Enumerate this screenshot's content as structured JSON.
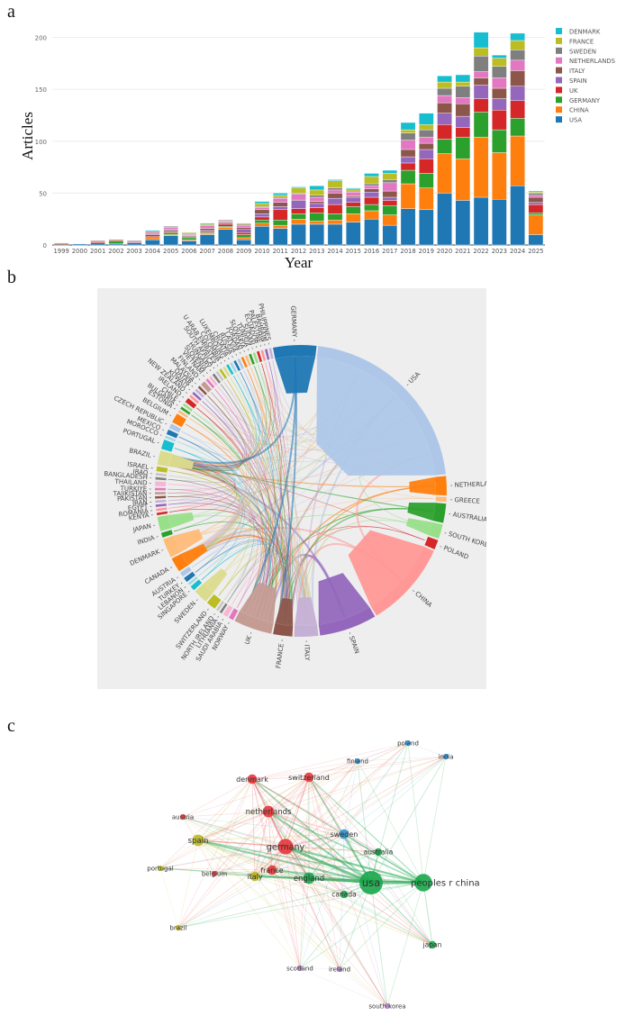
{
  "panels": {
    "a": {
      "letter": "a"
    },
    "b": {
      "letter": "b"
    },
    "c": {
      "letter": "c"
    }
  },
  "chart_data": [
    {
      "type": "bar",
      "stacked": true,
      "panel": "a",
      "title": "",
      "xlabel": "Year",
      "ylabel": "Articles",
      "ylim": [
        0,
        210
      ],
      "yticks": [
        0,
        50,
        100,
        150,
        200
      ],
      "grid": true,
      "legend_position": "top-right",
      "categories": [
        "1999",
        "2000",
        "2001",
        "2002",
        "2003",
        "2004",
        "2005",
        "2006",
        "2007",
        "2008",
        "2009",
        "2010",
        "2011",
        "2012",
        "2013",
        "2014",
        "2015",
        "2016",
        "2017",
        "2018",
        "2019",
        "2020",
        "2021",
        "2022",
        "2023",
        "2024",
        "2025"
      ],
      "series": [
        {
          "name": "USA",
          "color": "#1f77b4",
          "values": [
            0,
            1,
            2,
            1,
            2,
            5,
            9,
            4,
            10,
            15,
            5,
            18,
            16,
            20,
            20,
            20,
            22,
            25,
            19,
            35,
            34,
            50,
            43,
            46,
            44,
            57,
            10
          ]
        },
        {
          "name": "CHINA",
          "color": "#ff7f0e",
          "values": [
            0,
            0,
            0,
            0,
            0,
            2,
            1,
            1,
            1,
            2,
            2,
            3,
            3,
            5,
            3,
            4,
            8,
            8,
            10,
            24,
            21,
            38,
            40,
            58,
            45,
            48,
            19
          ]
        },
        {
          "name": "GERMANY",
          "color": "#2ca02c",
          "values": [
            0,
            0,
            0,
            3,
            0,
            1,
            2,
            2,
            1,
            1,
            3,
            3,
            5,
            5,
            8,
            6,
            7,
            6,
            9,
            13,
            14,
            14,
            21,
            24,
            22,
            17,
            2
          ]
        },
        {
          "name": "UK",
          "color": "#d62728",
          "values": [
            0,
            0,
            1,
            1,
            0,
            2,
            1,
            0,
            1,
            2,
            2,
            3,
            10,
            5,
            5,
            9,
            4,
            7,
            5,
            7,
            14,
            14,
            9,
            13,
            19,
            17,
            8
          ]
        },
        {
          "name": "SPAIN",
          "color": "#9467bd",
          "values": [
            0,
            0,
            0,
            0,
            1,
            1,
            1,
            1,
            1,
            1,
            3,
            3,
            3,
            8,
            4,
            6,
            5,
            5,
            3,
            6,
            9,
            11,
            11,
            13,
            11,
            14,
            2
          ]
        },
        {
          "name": "ITALY",
          "color": "#8c564b",
          "values": [
            1,
            0,
            1,
            0,
            1,
            1,
            1,
            1,
            2,
            1,
            2,
            4,
            4,
            1,
            2,
            5,
            1,
            3,
            6,
            7,
            6,
            10,
            12,
            7,
            10,
            15,
            5
          ]
        },
        {
          "name": "NETHERLANDS",
          "color": "#e377c2",
          "values": [
            0,
            0,
            0,
            0,
            0,
            1,
            2,
            1,
            3,
            1,
            2,
            2,
            4,
            5,
            4,
            3,
            4,
            3,
            8,
            9,
            6,
            7,
            6,
            6,
            10,
            10,
            2
          ]
        },
        {
          "name": "SWEDEN",
          "color": "#7f7f7f",
          "values": [
            1,
            0,
            0,
            0,
            0,
            0,
            1,
            1,
            0,
            1,
            1,
            1,
            1,
            1,
            2,
            2,
            1,
            2,
            3,
            7,
            7,
            7,
            11,
            15,
            11,
            10,
            2
          ]
        },
        {
          "name": "FRANCE",
          "color": "#bcbd22",
          "values": [
            0,
            0,
            0,
            0,
            0,
            0,
            0,
            1,
            1,
            0,
            1,
            3,
            2,
            5,
            5,
            7,
            2,
            7,
            6,
            3,
            5,
            6,
            4,
            8,
            8,
            9,
            1
          ]
        },
        {
          "name": "DENMARK",
          "color": "#17becf",
          "values": [
            0,
            0,
            0,
            0,
            0,
            1,
            0,
            0,
            1,
            0,
            0,
            2,
            2,
            1,
            4,
            1,
            1,
            3,
            3,
            7,
            11,
            6,
            7,
            15,
            3,
            7,
            1
          ]
        }
      ]
    },
    {
      "type": "chord",
      "panel": "b",
      "groups": [
        {
          "name": "USA",
          "color": "#aec7e8",
          "size": 40
        },
        {
          "name": "NETHERLANDS",
          "color": "#ff7f0e",
          "size": 4
        },
        {
          "name": "GREECE",
          "color": "#ffbb78",
          "size": 1
        },
        {
          "name": "AUSTRALIA",
          "color": "#2ca02c",
          "size": 4
        },
        {
          "name": "SOUTH KOREA",
          "color": "#98df8a",
          "size": 3
        },
        {
          "name": "POLAND",
          "color": "#d62728",
          "size": 2
        },
        {
          "name": "CHINA",
          "color": "#ff9896",
          "size": 18
        },
        {
          "name": "SPAIN",
          "color": "#9467bd",
          "size": 12
        },
        {
          "name": "ITALY",
          "color": "#c5b0d5",
          "size": 5
        },
        {
          "name": "FRANCE",
          "color": "#8c564b",
          "size": 4
        },
        {
          "name": "UK",
          "color": "#c49c94",
          "size": 8
        },
        {
          "name": "NORWAY",
          "color": "#e377c2",
          "size": 1
        },
        {
          "name": "SAUDI ARABIA",
          "color": "#f7b6d2",
          "size": 1
        },
        {
          "name": "LITHUANIA",
          "color": "#7f7f7f",
          "size": 0.5
        },
        {
          "name": "NORTH IRELAND",
          "color": "#c7c7c7",
          "size": 0.5
        },
        {
          "name": "SWITZERLAND",
          "color": "#bcbd22",
          "size": 2
        },
        {
          "name": "SWEDEN",
          "color": "#dbdb8d",
          "size": 3
        },
        {
          "name": "SINGAPORE",
          "color": "#17becf",
          "size": 1
        },
        {
          "name": "LEBANON",
          "color": "#9edae5",
          "size": 0.5
        },
        {
          "name": "TURKEY",
          "color": "#1f77b4",
          "size": 1
        },
        {
          "name": "AUSTRIA",
          "color": "#aec7e8",
          "size": 1
        },
        {
          "name": "CANADA",
          "color": "#ff7f0e",
          "size": 3
        },
        {
          "name": "DENMARK",
          "color": "#ffbb78",
          "size": 4
        },
        {
          "name": "INDIA",
          "color": "#2ca02c",
          "size": 1
        },
        {
          "name": "JAPAN",
          "color": "#98df8a",
          "size": 3
        },
        {
          "name": "KENYA",
          "color": "#d62728",
          "size": 0.5
        },
        {
          "name": "ROMANIA",
          "color": "#ff9896",
          "size": 0.5
        },
        {
          "name": "EGYPT",
          "color": "#9467bd",
          "size": 0.5
        },
        {
          "name": "IRAN",
          "color": "#c5b0d5",
          "size": 0.5
        },
        {
          "name": "PAKISTAN",
          "color": "#8c564b",
          "size": 0.5
        },
        {
          "name": "TAJIKISTAN",
          "color": "#c49c94",
          "size": 0.5
        },
        {
          "name": "TURKIYE",
          "color": "#e377c2",
          "size": 0.5
        },
        {
          "name": "THAILAND",
          "color": "#f7b6d2",
          "size": 1
        },
        {
          "name": "BANGLADESH",
          "color": "#7f7f7f",
          "size": 0.5
        },
        {
          "name": "IRAQ",
          "color": "#c7c7c7",
          "size": 0.5
        },
        {
          "name": "ISRAEL",
          "color": "#bcbd22",
          "size": 1
        },
        {
          "name": "BRAZIL",
          "color": "#dbdb8d",
          "size": 3
        },
        {
          "name": "PORTUGAL",
          "color": "#17becf",
          "size": 2
        },
        {
          "name": "MOROCCO",
          "color": "#9edae5",
          "size": 0.5
        },
        {
          "name": "MEXICO",
          "color": "#1f77b4",
          "size": 1
        },
        {
          "name": "CZECH REPUBLIC",
          "color": "#aec7e8",
          "size": 1
        },
        {
          "name": "BELGIUM",
          "color": "#ff7f0e",
          "size": 2
        },
        {
          "name": "ESTONIA",
          "color": "#ffbb78",
          "size": 0.5
        },
        {
          "name": "BULGARIA",
          "color": "#2ca02c",
          "size": 0.5
        },
        {
          "name": "CHILE",
          "color": "#98df8a",
          "size": 0.5
        },
        {
          "name": "IRELAND",
          "color": "#d62728",
          "size": 1
        },
        {
          "name": "NEW ZEALAND",
          "color": "#ff9896",
          "size": 0.5
        },
        {
          "name": "KUWAIT",
          "color": "#9467bd",
          "size": 0.5
        },
        {
          "name": "QATAR",
          "color": "#c5b0d5",
          "size": 0.5
        },
        {
          "name": "MALAYSIA",
          "color": "#8c564b",
          "size": 0.5
        },
        {
          "name": "FINLAND",
          "color": "#c49c94",
          "size": 1
        },
        {
          "name": "VIETNAM",
          "color": "#e377c2",
          "size": 0.5
        },
        {
          "name": "SLOVENIA",
          "color": "#f7b6d2",
          "size": 0.5
        },
        {
          "name": "HUNGARY",
          "color": "#7f7f7f",
          "size": 0.5
        },
        {
          "name": "SOUTH AFRICA",
          "color": "#c7c7c7",
          "size": 0.5
        },
        {
          "name": "U ARAB EMIRATES",
          "color": "#bcbd22",
          "size": 0.5
        },
        {
          "name": "COLOMBIA",
          "color": "#dbdb8d",
          "size": 0.5
        },
        {
          "name": "LUXEMBOURG",
          "color": "#17becf",
          "size": 0.5
        },
        {
          "name": "CROATIA",
          "color": "#9edae5",
          "size": 0.5
        },
        {
          "name": "RUSSIA",
          "color": "#1f77b4",
          "size": 0.5
        },
        {
          "name": "LATVIA",
          "color": "#aec7e8",
          "size": 0.5
        },
        {
          "name": "JORDAN",
          "color": "#ff7f0e",
          "size": 0.5
        },
        {
          "name": "SLOVAKIA",
          "color": "#ffbb78",
          "size": 0.5
        },
        {
          "name": "TUNISIA",
          "color": "#2ca02c",
          "size": 0.5
        },
        {
          "name": "SUDAN",
          "color": "#98df8a",
          "size": 0.5
        },
        {
          "name": "ECUADOR",
          "color": "#d62728",
          "size": 0.5
        },
        {
          "name": "PALESTINE",
          "color": "#ff9896",
          "size": 0.5
        },
        {
          "name": "BAHRAIN",
          "color": "#9467bd",
          "size": 0.5
        },
        {
          "name": "PHILIPPINES",
          "color": "#c5b0d5",
          "size": 0.5
        },
        {
          "name": "GERMANY",
          "color": "#1f77b4",
          "size": 9
        }
      ]
    },
    {
      "type": "network",
      "panel": "c",
      "nodes": [
        {
          "label": "usa",
          "cluster": "green",
          "weight": 10
        },
        {
          "label": "peoples r china",
          "cluster": "green",
          "weight": 7
        },
        {
          "label": "england",
          "cluster": "green",
          "weight": 4
        },
        {
          "label": "canada",
          "cluster": "green",
          "weight": 2
        },
        {
          "label": "australia",
          "cluster": "green",
          "weight": 2
        },
        {
          "label": "japan",
          "cluster": "green",
          "weight": 2
        },
        {
          "label": "germany",
          "cluster": "red",
          "weight": 6
        },
        {
          "label": "netherlands",
          "cluster": "red",
          "weight": 4
        },
        {
          "label": "denmark",
          "cluster": "red",
          "weight": 3
        },
        {
          "label": "switzerland",
          "cluster": "red",
          "weight": 3
        },
        {
          "label": "france",
          "cluster": "red",
          "weight": 3
        },
        {
          "label": "austria",
          "cluster": "red",
          "weight": 1
        },
        {
          "label": "belgium",
          "cluster": "red",
          "weight": 1
        },
        {
          "label": "spain",
          "cluster": "yellow",
          "weight": 4
        },
        {
          "label": "italy",
          "cluster": "yellow",
          "weight": 3
        },
        {
          "label": "portugal",
          "cluster": "yellow",
          "weight": 1
        },
        {
          "label": "brazil",
          "cluster": "yellow",
          "weight": 1
        },
        {
          "label": "sweden",
          "cluster": "blue",
          "weight": 3
        },
        {
          "label": "finland",
          "cluster": "blue",
          "weight": 1
        },
        {
          "label": "poland",
          "cluster": "blue",
          "weight": 1
        },
        {
          "label": "india",
          "cluster": "blue",
          "weight": 1
        },
        {
          "label": "scotland",
          "cluster": "purple",
          "weight": 1
        },
        {
          "label": "ireland",
          "cluster": "purple",
          "weight": 1
        },
        {
          "label": "south korea",
          "cluster": "purple",
          "weight": 1
        }
      ],
      "cluster_colors": {
        "green": "#1aa64a",
        "red": "#e8373b",
        "yellow": "#b8b820",
        "blue": "#2d8fcf",
        "purple": "#b67fc9"
      }
    }
  ]
}
